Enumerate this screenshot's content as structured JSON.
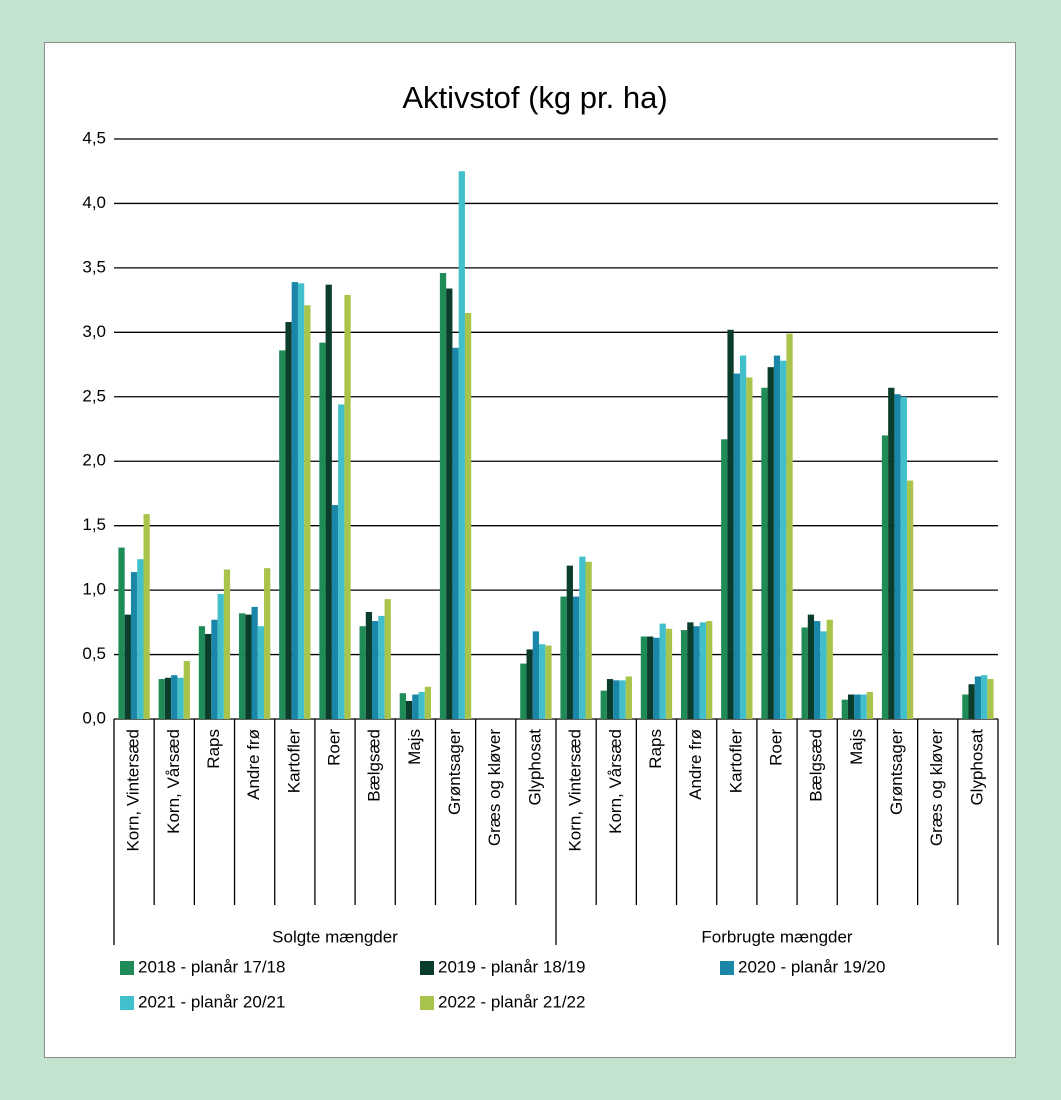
{
  "chart_data": {
    "type": "bar",
    "title": "Aktivstof (kg pr. ha)",
    "categories": [
      "Korn, Vintersæd",
      "Korn, Vårsæd",
      "Raps",
      "Andre frø",
      "Kartofler",
      "Roer",
      "Bælgsæd",
      "Majs",
      "Grøntsager",
      "Græs og kløver",
      "Glyphosat",
      "Korn, Vintersæd",
      "Korn, Vårsæd",
      "Raps",
      "Andre frø",
      "Kartofler",
      "Roer",
      "Bælgsæd",
      "Majs",
      "Grøntsager",
      "Græs og kløver",
      "Glyphosat"
    ],
    "category_groups": [
      "Solgte mængder",
      "Forbrugte mængder"
    ],
    "series": [
      {
        "name": "2018 - planår 17/18",
        "color": "#1f8c58",
        "values": [
          1.33,
          0.31,
          0.72,
          0.82,
          2.86,
          2.92,
          0.72,
          0.2,
          3.46,
          0,
          0.43,
          0.95,
          0.22,
          0.64,
          0.69,
          2.17,
          2.57,
          0.71,
          0.15,
          2.2,
          0,
          0.19
        ]
      },
      {
        "name": "2019 - planår 18/19",
        "color": "#0b3d2c",
        "values": [
          0.81,
          0.32,
          0.66,
          0.81,
          3.08,
          3.37,
          0.83,
          0.14,
          3.34,
          0,
          0.54,
          1.19,
          0.31,
          0.64,
          0.75,
          3.02,
          2.73,
          0.81,
          0.19,
          2.57,
          0,
          0.27
        ]
      },
      {
        "name": "2020 - planår 19/20",
        "color": "#1a86a8",
        "values": [
          1.14,
          0.34,
          0.77,
          0.87,
          3.39,
          1.66,
          0.76,
          0.19,
          2.88,
          0,
          0.68,
          0.95,
          0.3,
          0.63,
          0.72,
          2.68,
          2.82,
          0.76,
          0.19,
          2.52,
          0,
          0.33
        ]
      },
      {
        "name": "2021 - planår 20/21",
        "color": "#41c0cc",
        "values": [
          1.24,
          0.32,
          0.97,
          0.72,
          3.38,
          2.44,
          0.8,
          0.21,
          4.25,
          0,
          0.58,
          1.26,
          0.3,
          0.74,
          0.75,
          2.82,
          2.78,
          0.68,
          0.19,
          2.5,
          0,
          0.34
        ]
      },
      {
        "name": "2022 - planår 21/22",
        "color": "#a9c44a",
        "values": [
          1.59,
          0.45,
          1.16,
          1.17,
          3.21,
          3.29,
          0.93,
          0.25,
          3.15,
          0,
          0.57,
          1.22,
          0.33,
          0.7,
          0.76,
          2.65,
          2.99,
          0.77,
          0.21,
          1.85,
          0,
          0.31
        ]
      }
    ],
    "ylim": [
      0,
      4.5
    ],
    "yticks": [
      {
        "value": 0,
        "label": "0,0"
      },
      {
        "value": 0.5,
        "label": "0,5"
      },
      {
        "value": 1,
        "label": "1,0"
      },
      {
        "value": 1.5,
        "label": "1,5"
      },
      {
        "value": 2,
        "label": "2,0"
      },
      {
        "value": 2.5,
        "label": "2,5"
      },
      {
        "value": 3,
        "label": "3,0"
      },
      {
        "value": 3.5,
        "label": "3,5"
      },
      {
        "value": 4,
        "label": "4,0"
      },
      {
        "value": 4.5,
        "label": "4,5"
      }
    ],
    "grid": true,
    "legend": "bottom"
  }
}
